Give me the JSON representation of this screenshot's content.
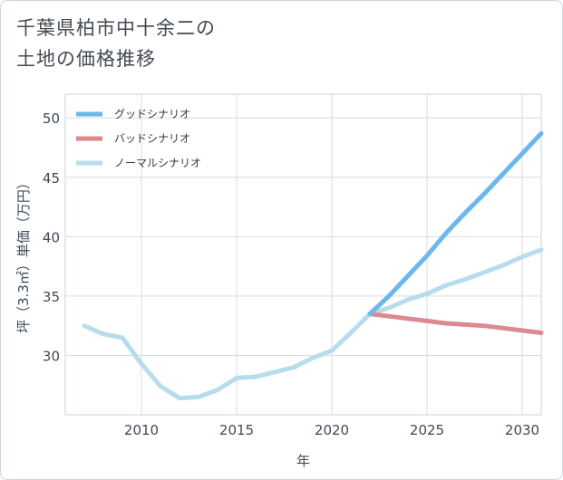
{
  "title_line1": "千葉県柏市中十余二の",
  "title_line2": "土地の価格推移",
  "chart_data": {
    "type": "line",
    "title": "千葉県柏市中十余二の土地の価格推移",
    "xlabel": "年",
    "ylabel": "坪（3.3㎡）単価（万円）",
    "xlim": [
      2006,
      2031
    ],
    "ylim": [
      25,
      52
    ],
    "xticks": [
      2010,
      2015,
      2020,
      2025,
      2030
    ],
    "yticks": [
      30,
      35,
      40,
      45,
      50
    ],
    "grid": true,
    "legend_position": "top-left",
    "series": [
      {
        "name": "グッドシナリオ",
        "color": "#6cb8ec",
        "x": [
          2022,
          2023,
          2024,
          2025,
          2026,
          2027,
          2028,
          2029,
          2030,
          2031
        ],
        "y": [
          33.5,
          35.0,
          36.7,
          38.4,
          40.3,
          42.0,
          43.6,
          45.3,
          47.0,
          48.7
        ]
      },
      {
        "name": "バッドシナリオ",
        "color": "#dc8a90",
        "x": [
          2022,
          2023,
          2024,
          2025,
          2026,
          2027,
          2028,
          2029,
          2030,
          2031
        ],
        "y": [
          33.5,
          33.3,
          33.1,
          32.9,
          32.7,
          32.6,
          32.5,
          32.3,
          32.1,
          31.9
        ]
      },
      {
        "name": "ノーマルシナリオ",
        "color": "#b7ddec",
        "x": [
          2007,
          2008,
          2009,
          2010,
          2011,
          2012,
          2013,
          2014,
          2015,
          2016,
          2017,
          2018,
          2019,
          2020,
          2021,
          2022,
          2023,
          2024,
          2025,
          2026,
          2027,
          2028,
          2029,
          2030,
          2031
        ],
        "y": [
          32.5,
          31.8,
          31.5,
          29.3,
          27.4,
          26.4,
          26.5,
          27.1,
          28.1,
          28.2,
          28.6,
          29.0,
          29.8,
          30.4,
          31.9,
          33.5,
          34.0,
          34.7,
          35.2,
          35.9,
          36.4,
          37.0,
          37.6,
          38.3,
          38.9
        ]
      }
    ]
  }
}
